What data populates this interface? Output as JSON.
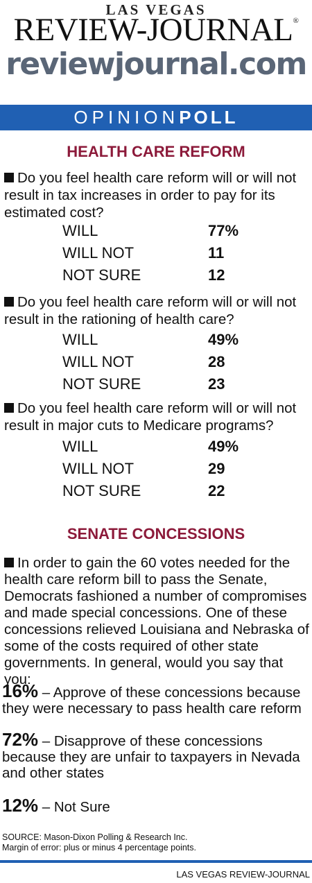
{
  "masthead": {
    "small": "LAS VEGAS",
    "big": "REVIEW-JOURNAL",
    "reg": "®",
    "url": "reviewjournal.com"
  },
  "banner": {
    "opinion": "OPINION",
    "poll": "POLL"
  },
  "section1": {
    "title": "HEALTH CARE REFORM",
    "questions": [
      {
        "text": "Do you feel health care reform will or will not result in tax increases in order to pay for its estimated cost?",
        "answers": [
          {
            "label": "WILL",
            "value": "77%"
          },
          {
            "label": "WILL NOT",
            "value": "11"
          },
          {
            "label": "NOT SURE",
            "value": "12"
          }
        ]
      },
      {
        "text": "Do you feel health care reform will or will not result in the rationing of health care?",
        "answers": [
          {
            "label": "WILL",
            "value": "49%"
          },
          {
            "label": "WILL NOT",
            "value": "28"
          },
          {
            "label": "NOT SURE",
            "value": "23"
          }
        ]
      },
      {
        "text": "Do you feel health care reform will or will not result in major cuts to Medicare programs?",
        "answers": [
          {
            "label": "WILL",
            "value": "49%"
          },
          {
            "label": "WILL NOT",
            "value": "29"
          },
          {
            "label": "NOT SURE",
            "value": "22"
          }
        ]
      }
    ]
  },
  "section2": {
    "title": "SENATE CONCESSIONS",
    "question": "In order to gain the 60 votes needed for the health care reform bill to pass the Senate, Democrats fashioned a number of compromises and made special concessions. One of these concessions relieved Louisiana and Nebraska of some of the costs required of other state governments. In general, would you say that you:",
    "options": [
      {
        "pct": "16%",
        "text": " – Approve of these concessions because they were necessary to pass health care reform"
      },
      {
        "pct": "72%",
        "text": " – Disapprove of these concessions because they are unfair to taxpayers in Nevada and other states"
      },
      {
        "pct": "12%",
        "text": " – Not Sure"
      }
    ]
  },
  "source": {
    "line1": "SOURCE: Mason-Dixon Polling & Research Inc.",
    "line2": "Margin of error: plus or minus 4 percentage points."
  },
  "credit": "LAS VEGAS REVIEW-JOURNAL",
  "colors": {
    "banner_blue": "#2060b3",
    "title_red": "#8c1a3a",
    "url_gray": "#5a6677"
  }
}
